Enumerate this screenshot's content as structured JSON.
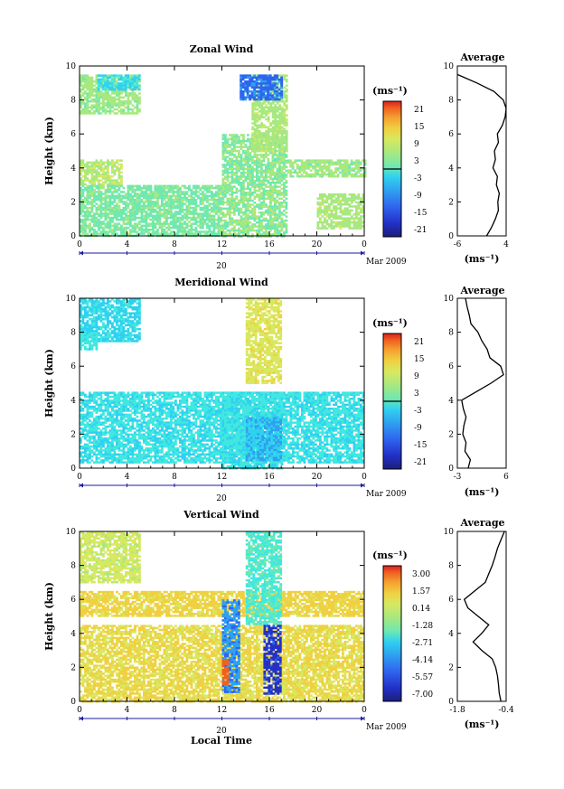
{
  "colors": {
    "scale": [
      "#1a1f7a",
      "#2330c8",
      "#2f64f0",
      "#2fa0f0",
      "#30d0f0",
      "#40e8e0",
      "#70e8b0",
      "#a8e880",
      "#d8e860",
      "#f0d040",
      "#f5a030",
      "#f06020",
      "#d82020"
    ],
    "contour": "#000000",
    "frame": "#000000",
    "axis_blue": "#1a1aa0"
  },
  "chart_data": [
    {
      "type": "heatmap",
      "title": "Zonal Wind",
      "xlabel": "",
      "ylabel": "Height (km)",
      "xlim": [
        0,
        24
      ],
      "ylim": [
        0,
        10
      ],
      "x_ticks": [
        "0",
        "4",
        "8",
        "12",
        "16",
        "20",
        "0"
      ],
      "y_ticks": [
        "0",
        "2",
        "4",
        "6",
        "8",
        "10"
      ],
      "date_marker": "20",
      "month_label": "Mar 2009",
      "colorbar": {
        "unit": "(ms⁻¹)",
        "ticks": [
          "21",
          "15",
          "9",
          "3",
          "-3",
          "-9",
          "-15",
          "-21"
        ],
        "range": [
          -24,
          24
        ]
      },
      "regions": [
        {
          "x": [
            0.0,
            5.0
          ],
          "y": [
            7.2,
            9.5
          ],
          "value": 3
        },
        {
          "x": [
            1.5,
            5.0
          ],
          "y": [
            8.6,
            9.5
          ],
          "value": -6
        },
        {
          "x": [
            0.0,
            3.5
          ],
          "y": [
            3.0,
            4.5
          ],
          "value": 5
        },
        {
          "x": [
            0.0,
            12.0
          ],
          "y": [
            0.0,
            3.0
          ],
          "value": 1
        },
        {
          "x": [
            12.0,
            17.5
          ],
          "y": [
            0.0,
            6.0
          ],
          "value": 2
        },
        {
          "x": [
            14.5,
            17.5
          ],
          "y": [
            5.0,
            9.5
          ],
          "value": 4
        },
        {
          "x": [
            13.5,
            17.0
          ],
          "y": [
            8.0,
            9.5
          ],
          "value": -14
        },
        {
          "x": [
            17.5,
            24.0
          ],
          "y": [
            3.5,
            4.5
          ],
          "value": 3
        },
        {
          "x": [
            20.0,
            24.0
          ],
          "y": [
            0.5,
            2.5
          ],
          "value": 4
        }
      ],
      "profile": {
        "title": "Average",
        "xlabel": "(ms⁻¹)",
        "ylabel": "",
        "xlim": [
          -6,
          4
        ],
        "ylim": [
          0,
          10
        ],
        "x_ticks": [
          "-6",
          "4"
        ],
        "y_ticks": [
          "0",
          "2",
          "4",
          "6",
          "8",
          "10"
        ],
        "y": [
          0,
          0.5,
          1,
          1.5,
          2,
          2.5,
          3,
          3.5,
          4,
          4.5,
          5,
          5.5,
          6,
          6.5,
          7,
          7.5,
          8,
          8.5,
          9,
          9.5
        ],
        "x": [
          0.0,
          1.0,
          1.8,
          2.4,
          2.3,
          2.6,
          2.0,
          2.2,
          1.3,
          1.8,
          1.6,
          2.4,
          2.2,
          3.2,
          3.8,
          4.0,
          3.4,
          1.5,
          -2.0,
          -6.0
        ]
      }
    },
    {
      "type": "heatmap",
      "title": "Meridional Wind",
      "xlabel": "",
      "ylabel": "Height (km)",
      "xlim": [
        0,
        24
      ],
      "ylim": [
        0,
        10
      ],
      "x_ticks": [
        "0",
        "4",
        "8",
        "12",
        "16",
        "20",
        "0"
      ],
      "y_ticks": [
        "0",
        "2",
        "4",
        "6",
        "8",
        "10"
      ],
      "date_marker": "20",
      "month_label": "Mar 2009",
      "colorbar": {
        "unit": "(ms⁻¹)",
        "ticks": [
          "21",
          "15",
          "9",
          "3",
          "-3",
          "-9",
          "-15",
          "-21"
        ],
        "range": [
          -24,
          24
        ]
      },
      "regions": [
        {
          "x": [
            0.0,
            5.0
          ],
          "y": [
            7.5,
            10.0
          ],
          "value": -6
        },
        {
          "x": [
            0.0,
            1.5
          ],
          "y": [
            7.0,
            8.0
          ],
          "value": -4
        },
        {
          "x": [
            0.0,
            24.0
          ],
          "y": [
            0.3,
            4.5
          ],
          "value": -5
        },
        {
          "x": [
            12.0,
            17.0
          ],
          "y": [
            0.0,
            4.5
          ],
          "value": -5
        },
        {
          "x": [
            14.0,
            17.0
          ],
          "y": [
            0.5,
            3.0
          ],
          "value": -9
        },
        {
          "x": [
            14.0,
            17.0
          ],
          "y": [
            5.0,
            10.0
          ],
          "value": 8
        }
      ],
      "profile": {
        "title": "Average",
        "xlabel": "(ms⁻¹)",
        "ylabel": "",
        "xlim": [
          -3,
          6
        ],
        "ylim": [
          0,
          10
        ],
        "x_ticks": [
          "-3",
          "6"
        ],
        "y_ticks": [
          "0",
          "2",
          "4",
          "6",
          "8",
          "10"
        ],
        "y": [
          0,
          0.5,
          1,
          1.5,
          2,
          2.5,
          3,
          3.5,
          4,
          4.5,
          5,
          5.5,
          6,
          6.5,
          7,
          7.5,
          8,
          8.5,
          9,
          9.5,
          10
        ],
        "x": [
          -1.0,
          -0.6,
          -1.6,
          -1.4,
          -2.0,
          -1.8,
          -1.4,
          -1.9,
          -2.2,
          0.5,
          3.2,
          5.5,
          5.0,
          3.0,
          2.5,
          1.5,
          0.8,
          -0.5,
          -0.8,
          -1.2,
          -1.5
        ]
      }
    },
    {
      "type": "heatmap",
      "title": "Vertical Wind",
      "xlabel": "Local Time",
      "ylabel": "Height (km)",
      "xlim": [
        0,
        24
      ],
      "ylim": [
        0,
        10
      ],
      "x_ticks": [
        "0",
        "4",
        "8",
        "12",
        "16",
        "20",
        "0"
      ],
      "y_ticks": [
        "0",
        "2",
        "4",
        "6",
        "8",
        "10"
      ],
      "date_marker": "20",
      "month_label": "Mar 2009",
      "colorbar": {
        "unit": "(ms⁻¹)",
        "ticks": [
          "3.00",
          "1.57",
          "0.14",
          "-1.28",
          "-2.71",
          "-4.14",
          "-5.57",
          "-7.00"
        ],
        "range": [
          -8,
          4
        ]
      },
      "regions": [
        {
          "x": [
            0.0,
            5.0
          ],
          "y": [
            7.0,
            10.0
          ],
          "value": -0.3
        },
        {
          "x": [
            0.0,
            24.0
          ],
          "y": [
            0.0,
            4.5
          ],
          "value": 0.4
        },
        {
          "x": [
            0.0,
            24.0
          ],
          "y": [
            5.0,
            6.5
          ],
          "value": 0.6
        },
        {
          "x": [
            12.0,
            13.5
          ],
          "y": [
            0.5,
            6.0
          ],
          "value": -5.0
        },
        {
          "x": [
            14.0,
            17.0
          ],
          "y": [
            4.5,
            10.0
          ],
          "value": -2.5
        },
        {
          "x": [
            15.5,
            17.0
          ],
          "y": [
            0.5,
            4.5
          ],
          "value": -6.5
        },
        {
          "x": [
            12.0,
            12.5
          ],
          "y": [
            1.0,
            2.5
          ],
          "value": 2.6
        }
      ],
      "profile": {
        "title": "Average",
        "xlabel": "(ms⁻¹)",
        "ylabel": "",
        "xlim": [
          -1.8,
          -0.4
        ],
        "ylim": [
          0,
          10
        ],
        "x_ticks": [
          "-1.8",
          "-0.4"
        ],
        "y_ticks": [
          "0",
          "2",
          "4",
          "6",
          "8",
          "10"
        ],
        "y": [
          0,
          0.5,
          1,
          1.5,
          2,
          2.5,
          3,
          3.5,
          4,
          4.5,
          5,
          5.5,
          6,
          6.5,
          7,
          7.5,
          8,
          8.5,
          9,
          9.5,
          10
        ],
        "x": [
          -0.55,
          -0.6,
          -0.62,
          -0.65,
          -0.7,
          -0.8,
          -1.1,
          -1.35,
          -1.1,
          -0.9,
          -1.2,
          -1.5,
          -1.6,
          -1.3,
          -1.0,
          -0.9,
          -0.8,
          -0.72,
          -0.65,
          -0.55,
          -0.45
        ]
      }
    }
  ]
}
